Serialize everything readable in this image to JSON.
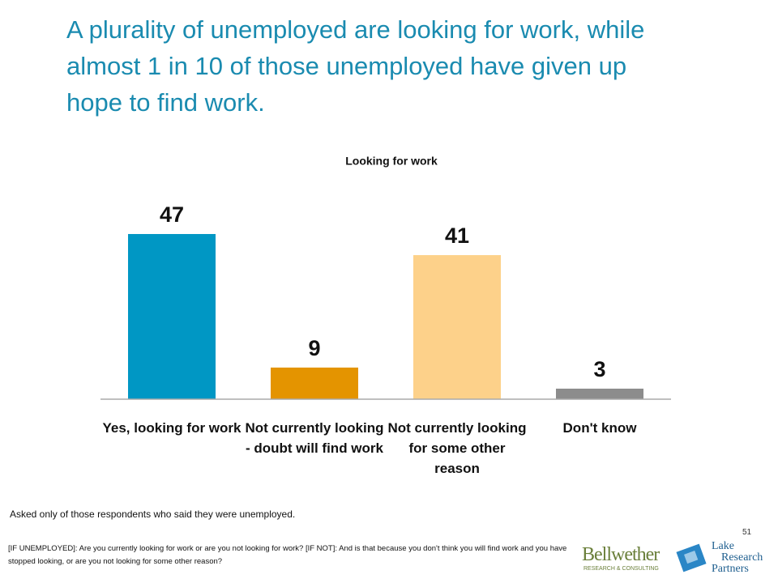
{
  "chart_data": {
    "type": "bar",
    "title": "A plurality of unemployed are looking for work, while almost 1 in 10 of those unemployed have given up hope to find work.",
    "subtitle": "Looking for work",
    "categories": [
      "Yes, looking for work",
      "Not currently looking - doubt will find work",
      "Not currently looking for some other reason",
      "Don't know"
    ],
    "values": [
      47,
      9,
      41,
      3
    ],
    "colors": [
      "#0097c4",
      "#e49400",
      "#fdd18a",
      "#8c8c8c"
    ],
    "ylim": [
      0,
      50
    ]
  },
  "note": "Asked only of those respondents who said they were unemployed.",
  "footnote": "[IF UNEMPLOYED]: Are you currently looking for work or are you not looking for work? [IF NOT]: And is that because you don't think you will find work and you have stopped looking, or are you not looking for some other reason?",
  "page_number": "51",
  "logos": {
    "bellwether": "Bellwether",
    "bellwether_sub": "Research & Consulting",
    "lake": [
      "Lake",
      "Research",
      "Partners"
    ]
  }
}
